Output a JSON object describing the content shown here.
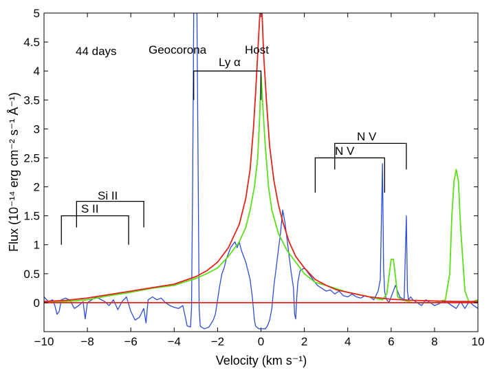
{
  "chart_data": {
    "type": "line",
    "title": "",
    "xlabel": "Velocity (km s⁻¹)",
    "ylabel": "Flux (10⁻¹⁴ erg cm⁻² s⁻¹ Å⁻¹)",
    "xlim": [
      -10,
      10
    ],
    "ylim": [
      -0.5,
      5
    ],
    "xticks": [
      -10,
      -8,
      -6,
      -4,
      -2,
      0,
      2,
      4,
      6,
      8,
      10
    ],
    "xtick_labels": [
      "−10",
      "−8",
      "−6",
      "−4",
      "−2",
      "0",
      "2",
      "4",
      "6",
      "8",
      "10"
    ],
    "yticks": [
      0,
      0.5,
      1,
      1.5,
      2,
      2.5,
      3,
      3.5,
      4,
      4.5,
      5
    ],
    "ytick_labels": [
      "0",
      "0.5",
      "1",
      "1.5",
      "2",
      "2.5",
      "3",
      "3.5",
      "4",
      "4.5",
      "5"
    ],
    "grid": false,
    "annotations": {
      "epoch": "44 days",
      "geocorona": "Geocorona",
      "host": "Host",
      "lya": "Ly α",
      "nv_upper": "N V",
      "nv_lower": "N V",
      "si2": "Si II",
      "s2": "S II"
    },
    "markers": {
      "lya": {
        "x1": -3.1,
        "x2": 0.0,
        "y": 4.0,
        "ylow": 3.5
      },
      "nv_upper": {
        "x1": 3.4,
        "x2": 6.7,
        "y": 2.75,
        "ylow": 2.3
      },
      "nv_lower": {
        "x1": 2.5,
        "x2": 5.7,
        "y": 2.5,
        "ylow": 1.9
      },
      "si2": {
        "x1": -8.5,
        "x2": -5.4,
        "y": 1.75,
        "ylow": 1.3
      },
      "s2": {
        "x1": -9.2,
        "x2": -6.1,
        "y": 1.5,
        "ylow": 1.0
      }
    },
    "series": [
      {
        "name": "Observed spectrum (44 days)",
        "color": "#2b4bd8",
        "x": [
          -10.0,
          -9.8,
          -9.6,
          -9.5,
          -9.4,
          -9.3,
          -9.2,
          -9.0,
          -8.8,
          -8.6,
          -8.4,
          -8.2,
          -8.1,
          -8.0,
          -7.8,
          -7.6,
          -7.4,
          -7.2,
          -7.0,
          -6.8,
          -6.6,
          -6.4,
          -6.2,
          -6.0,
          -5.8,
          -5.6,
          -5.4,
          -5.3,
          -5.2,
          -5.0,
          -4.8,
          -4.6,
          -4.4,
          -4.2,
          -4.0,
          -3.8,
          -3.6,
          -3.4,
          -3.25,
          -3.2,
          -3.15,
          -3.1,
          -3.05,
          -2.95,
          -2.9,
          -2.85,
          -2.8,
          -2.75,
          -2.6,
          -2.4,
          -2.2,
          -2.1,
          -2.0,
          -1.9,
          -1.8,
          -1.7,
          -1.6,
          -1.5,
          -1.4,
          -1.3,
          -1.2,
          -1.1,
          -1.0,
          -0.9,
          -0.8,
          -0.7,
          -0.6,
          -0.5,
          -0.4,
          -0.3,
          -0.25,
          -0.2,
          -0.1,
          0.0,
          0.1,
          0.2,
          0.3,
          0.4,
          0.5,
          0.6,
          0.7,
          0.8,
          0.9,
          1.0,
          1.1,
          1.2,
          1.3,
          1.4,
          1.5,
          1.55,
          1.6,
          1.65,
          1.7,
          1.8,
          2.0,
          2.2,
          2.4,
          2.6,
          2.8,
          3.0,
          3.2,
          3.4,
          3.6,
          3.8,
          4.0,
          4.2,
          4.4,
          4.6,
          4.8,
          5.0,
          5.2,
          5.4,
          5.5,
          5.6,
          5.65,
          5.7,
          5.75,
          5.8,
          5.9,
          6.0,
          6.2,
          6.4,
          6.6,
          6.7,
          6.75,
          6.8,
          6.9,
          7.0,
          7.2,
          7.4,
          7.6,
          7.8,
          8.0,
          8.2,
          8.4,
          8.6,
          8.8,
          9.0,
          9.2,
          9.4,
          9.6,
          9.8,
          10.0
        ],
        "y": [
          0.1,
          0.02,
          0.05,
          -0.05,
          -0.2,
          -0.15,
          0.05,
          0.08,
          0.04,
          -0.1,
          -0.05,
          0.02,
          -0.28,
          0.0,
          0.05,
          0.1,
          0.06,
          0.02,
          -0.05,
          0.05,
          -0.12,
          0.02,
          0.1,
          -0.15,
          -0.3,
          -0.25,
          -0.1,
          -0.35,
          0.05,
          0.1,
          0.05,
          0.08,
          0.0,
          -0.05,
          -0.08,
          -0.1,
          -0.05,
          -0.4,
          -0.42,
          -0.1,
          2.0,
          5.0,
          5.0,
          5.0,
          2.5,
          -0.1,
          -0.4,
          -0.42,
          -0.45,
          -0.42,
          -0.3,
          -0.2,
          0.05,
          0.3,
          0.5,
          0.6,
          0.75,
          0.85,
          0.95,
          1.0,
          1.05,
          0.95,
          1.05,
          0.9,
          0.8,
          0.7,
          0.55,
          0.4,
          0.1,
          -0.3,
          -0.4,
          -0.42,
          -0.45,
          -0.45,
          -0.45,
          -0.45,
          -0.4,
          -0.3,
          -0.1,
          0.3,
          0.6,
          0.9,
          1.2,
          1.6,
          1.4,
          1.1,
          0.8,
          0.5,
          0.25,
          -0.2,
          -0.28,
          0.1,
          0.35,
          0.55,
          0.6,
          0.5,
          0.4,
          0.3,
          0.25,
          0.2,
          0.22,
          0.15,
          0.2,
          0.12,
          0.1,
          0.15,
          0.1,
          0.08,
          0.12,
          0.1,
          0.05,
          0.2,
          0.4,
          2.4,
          0.6,
          0.2,
          0.1,
          0.05,
          0.0,
          0.1,
          0.3,
          0.1,
          0.05,
          1.5,
          0.2,
          0.05,
          0.1,
          0.05,
          0.0,
          -0.05,
          0.05,
          0.0,
          -0.05,
          -0.02,
          0.02,
          0.0,
          -0.05,
          -0.1,
          0.02,
          -0.1,
          0.02,
          -0.05,
          -0.1
        ]
      },
      {
        "name": "Green model",
        "color": "#5be018",
        "x": [
          -10.0,
          -9.0,
          -8.0,
          -7.0,
          -6.0,
          -5.0,
          -4.0,
          -3.0,
          -2.5,
          -2.0,
          -1.5,
          -1.0,
          -0.7,
          -0.5,
          -0.3,
          -0.15,
          -0.05,
          0.0,
          0.1,
          0.2,
          0.35,
          0.5,
          0.8,
          1.2,
          1.6,
          2.0,
          2.5,
          3.0,
          4.0,
          5.0,
          5.6,
          5.8,
          5.9,
          6.0,
          6.1,
          6.2,
          6.3,
          6.5,
          7.0,
          7.5,
          8.0,
          8.5,
          8.7,
          8.8,
          8.9,
          9.0,
          9.1,
          9.2,
          9.4,
          9.6,
          10.0
        ],
        "y": [
          0.0,
          0.02,
          0.05,
          0.12,
          0.18,
          0.25,
          0.3,
          0.42,
          0.5,
          0.6,
          0.8,
          1.05,
          1.3,
          1.6,
          2.0,
          2.5,
          3.3,
          3.95,
          3.3,
          2.7,
          2.0,
          1.6,
          1.2,
          0.9,
          0.7,
          0.5,
          0.35,
          0.3,
          0.18,
          0.1,
          0.05,
          0.15,
          0.45,
          0.75,
          0.75,
          0.45,
          0.1,
          0.05,
          0.0,
          0.0,
          0.0,
          0.05,
          0.5,
          1.5,
          2.1,
          2.3,
          2.1,
          1.3,
          0.2,
          0.0,
          0.05
        ]
      },
      {
        "name": "Red model",
        "color": "#e3231a",
        "x": [
          -10.0,
          -9.0,
          -8.0,
          -7.0,
          -6.0,
          -5.0,
          -4.0,
          -3.0,
          -2.5,
          -2.0,
          -1.5,
          -1.0,
          -0.7,
          -0.5,
          -0.35,
          -0.25,
          -0.15,
          -0.05,
          0.05,
          0.12,
          0.25,
          0.4,
          0.6,
          0.8,
          1.0,
          1.3,
          1.6,
          2.0,
          2.5,
          3.0,
          3.5,
          4.0,
          5.0,
          6.0,
          7.0,
          8.0,
          9.0,
          10.0
        ],
        "y": [
          0.02,
          0.04,
          0.08,
          0.14,
          0.2,
          0.26,
          0.32,
          0.45,
          0.55,
          0.7,
          0.95,
          1.35,
          1.8,
          2.3,
          3.0,
          3.6,
          4.3,
          5.0,
          5.0,
          4.3,
          3.5,
          2.7,
          2.1,
          1.7,
          1.4,
          1.05,
          0.8,
          0.6,
          0.4,
          0.3,
          0.22,
          0.18,
          0.1,
          0.06,
          0.04,
          0.03,
          0.02,
          0.02
        ]
      },
      {
        "name": "Zero level",
        "color": "#e3231a",
        "x": [
          -10,
          10
        ],
        "y": [
          0,
          0
        ]
      }
    ]
  }
}
